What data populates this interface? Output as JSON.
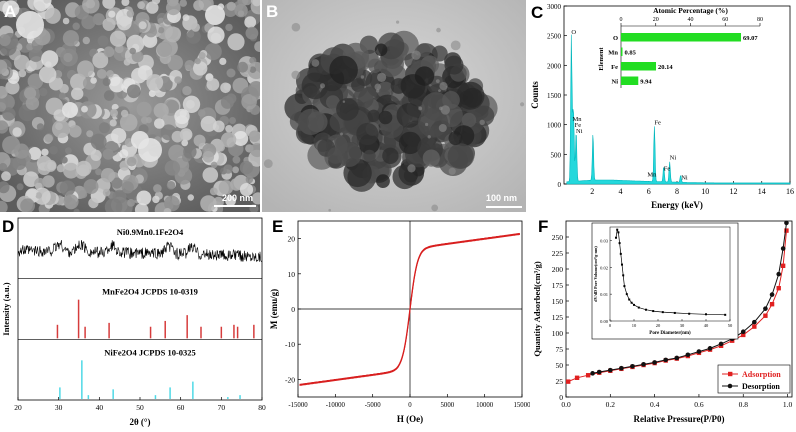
{
  "panels": {
    "A": {
      "label": "A",
      "scalebar": "200 nm"
    },
    "B": {
      "label": "B",
      "scalebar": "100 nm"
    },
    "C": {
      "label": "C"
    },
    "D": {
      "label": "D"
    },
    "E": {
      "label": "E"
    },
    "F": {
      "label": "F"
    }
  },
  "chart_data": [
    {
      "id": "C",
      "type": "line",
      "xlabel": "Energy (keV)",
      "ylabel": "Counts",
      "xlim": [
        0,
        16
      ],
      "ylim": [
        0,
        3000
      ],
      "xticks": [
        2,
        4,
        6,
        8,
        10,
        12,
        14,
        16
      ],
      "yticks": [
        0,
        500,
        1000,
        1500,
        2000,
        2500,
        3000
      ],
      "peaks": [
        {
          "x": 0.52,
          "y": 2450
        },
        {
          "x": 0.64,
          "y": 900
        },
        {
          "x": 0.7,
          "y": 600
        },
        {
          "x": 0.86,
          "y": 850
        },
        {
          "x": 2.05,
          "y": 780
        },
        {
          "x": 6.4,
          "y": 930
        },
        {
          "x": 7.06,
          "y": 260
        },
        {
          "x": 7.48,
          "y": 340
        },
        {
          "x": 8.26,
          "y": 120
        }
      ],
      "peak_labels": [
        {
          "text": "O",
          "x": 0.52,
          "y": 2530
        },
        {
          "text": "Mn",
          "x": 0.6,
          "y": 1060
        },
        {
          "text": "Fe",
          "x": 0.75,
          "y": 960
        },
        {
          "text": "Ni",
          "x": 0.85,
          "y": 860
        },
        {
          "text": "Fe",
          "x": 6.4,
          "y": 1000
        },
        {
          "text": "Mn",
          "x": 5.9,
          "y": 130
        },
        {
          "text": "Fe",
          "x": 7.06,
          "y": 230
        },
        {
          "text": "Ni",
          "x": 7.48,
          "y": 410
        },
        {
          "text": "Ni",
          "x": 8.3,
          "y": 80
        }
      ],
      "inset": {
        "type": "bar",
        "title": "Atomic Percentage (%)",
        "ylabel": "Element",
        "xlim": [
          0,
          80
        ],
        "xticks": [
          0,
          20,
          40,
          60,
          80
        ],
        "categories": [
          "O",
          "Mn",
          "Fe",
          "Ni"
        ],
        "values": [
          69.07,
          0.85,
          20.14,
          9.94
        ],
        "value_labels": [
          "69.07",
          "0.85",
          "20.14",
          "9.94"
        ]
      }
    },
    {
      "id": "D",
      "type": "line",
      "xlabel": "2θ (°)",
      "ylabel": "Intensity (a.u.)",
      "xlim": [
        20,
        80
      ],
      "xticks": [
        20,
        30,
        40,
        50,
        60,
        70,
        80
      ],
      "series": [
        {
          "name": "Ni0.9Mn0.1Fe2O4",
          "broad_peaks": [
            30.2,
            35.5,
            43.2,
            57.2,
            62.8
          ]
        },
        {
          "name": "MnFe2O4 JCPDS 10-0319",
          "positions": [
            29.7,
            34.9,
            36.5,
            42.4,
            52.6,
            56.2,
            61.6,
            65.0,
            70.0,
            73.1,
            74.0,
            78.0
          ],
          "heights": [
            0.35,
            1.0,
            0.3,
            0.4,
            0.3,
            0.45,
            0.6,
            0.3,
            0.3,
            0.35,
            0.3,
            0.35
          ]
        },
        {
          "name": "NiFe2O4 JCPDS 10-0325",
          "positions": [
            30.3,
            35.7,
            37.3,
            43.4,
            53.8,
            57.4,
            63.0,
            71.6,
            74.6
          ],
          "heights": [
            0.3,
            1.0,
            0.1,
            0.25,
            0.1,
            0.3,
            0.45,
            0.05,
            0.1
          ]
        }
      ]
    },
    {
      "id": "E",
      "type": "line",
      "xlabel": "H (Oe)",
      "ylabel": "M (emu/g)",
      "xlim": [
        -15000,
        15000
      ],
      "ylim": [
        -25,
        25
      ],
      "xticks": [
        -15000,
        -10000,
        -5000,
        0,
        5000,
        10000,
        15000
      ],
      "yticks": [
        -20,
        -10,
        0,
        10,
        20
      ],
      "curve": {
        "ms": 22,
        "kappa": 0.001
      }
    },
    {
      "id": "F",
      "type": "scatter",
      "xlabel": "Relative Pressure(P/P0)",
      "ylabel": "Quantity Adsorbed(cm³/g)",
      "xlim": [
        0,
        1.02
      ],
      "ylim": [
        0,
        275
      ],
      "xticks": [
        0.0,
        0.2,
        0.4,
        0.6,
        0.8,
        1.0
      ],
      "yticks": [
        0,
        25,
        50,
        75,
        100,
        125,
        150,
        175,
        200,
        225,
        250
      ],
      "series": [
        {
          "name": "Adsorption",
          "color": "#e02020",
          "marker": "square",
          "x": [
            0.01,
            0.05,
            0.1,
            0.15,
            0.2,
            0.25,
            0.3,
            0.35,
            0.4,
            0.45,
            0.5,
            0.55,
            0.6,
            0.65,
            0.7,
            0.75,
            0.8,
            0.85,
            0.9,
            0.93,
            0.96,
            0.98,
            0.995
          ],
          "y": [
            24,
            30,
            34,
            38,
            41,
            44,
            47,
            50,
            53,
            57,
            60,
            64,
            69,
            74,
            80,
            88,
            97,
            110,
            127,
            145,
            170,
            205,
            260
          ]
        },
        {
          "name": "Desorption",
          "color": "#111111",
          "marker": "circle",
          "x": [
            0.995,
            0.98,
            0.96,
            0.93,
            0.9,
            0.85,
            0.8,
            0.75,
            0.7,
            0.65,
            0.6,
            0.55,
            0.5,
            0.45,
            0.4,
            0.35,
            0.3,
            0.25,
            0.2,
            0.15,
            0.12
          ],
          "y": [
            272,
            232,
            192,
            160,
            138,
            117,
            102,
            91,
            83,
            76,
            71,
            66,
            61,
            58,
            54,
            51,
            48,
            45,
            42,
            39,
            37
          ]
        }
      ],
      "inset": {
        "type": "line",
        "xlabel": "Pore Diameter(nm)",
        "ylabel": "dV/dD Pore Volume(cm³/g·nm)",
        "xlim": [
          0,
          50
        ],
        "ylim": [
          0,
          0.035
        ],
        "xticks": [
          0,
          10,
          20,
          30,
          40,
          50
        ],
        "yticks": [
          0.0,
          0.01,
          0.02,
          0.03
        ],
        "x": [
          2.5,
          3,
          3.5,
          4,
          4.5,
          5,
          5.5,
          6,
          7,
          8,
          9,
          10,
          12,
          15,
          18,
          22,
          27,
          33,
          40,
          48
        ],
        "y": [
          0.031,
          0.034,
          0.033,
          0.029,
          0.025,
          0.021,
          0.017,
          0.013,
          0.01,
          0.008,
          0.0068,
          0.006,
          0.005,
          0.0042,
          0.0037,
          0.0033,
          0.003,
          0.0027,
          0.0025,
          0.0023
        ]
      }
    }
  ]
}
